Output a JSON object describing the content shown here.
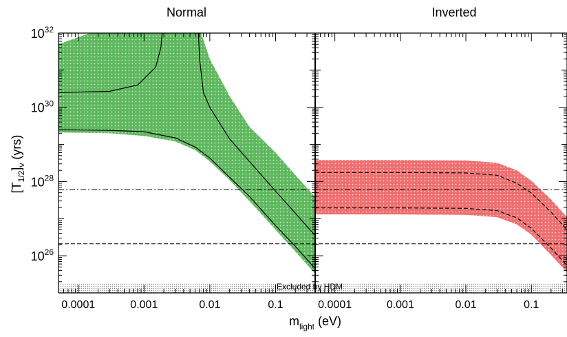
{
  "chart_data": {
    "type": "area",
    "title": "",
    "xlabel_main": "m",
    "xlabel_sub": "light",
    "xlabel_unit": " (eV)",
    "ylabel_main": "[T",
    "ylabel_sub": "1/2",
    "ylabel_mid": "]",
    "ylabel_sub2": "ν",
    "ylabel_unit": " (yrs)",
    "x_scale": "log",
    "y_scale": "log",
    "ylim": [
      1e+25,
      1e+32
    ],
    "y_ticks": [
      {
        "value": 1e+26,
        "base": "10",
        "exp": "26"
      },
      {
        "value": 1e+28,
        "base": "10",
        "exp": "28"
      },
      {
        "value": 1e+30,
        "base": "10",
        "exp": "30"
      },
      {
        "value": 1e+32,
        "base": "10",
        "exp": "32"
      }
    ],
    "x_ticks": [
      {
        "value": 0.0001,
        "label": "0.0001"
      },
      {
        "value": 0.001,
        "label": "0.001"
      },
      {
        "value": 0.01,
        "label": "0.01"
      },
      {
        "value": 0.1,
        "label": "0.1"
      }
    ],
    "horizontal_lines": [
      {
        "style": "dashdot",
        "value": 6e+27
      },
      {
        "style": "dashed",
        "value": 2.1e+26
      }
    ],
    "excluded_region": {
      "label": "Excluded by HDM",
      "y_max": 1.8e+25
    },
    "panels": [
      {
        "title": "Normal",
        "xlim": [
          5e-05,
          0.4
        ],
        "band_color": "#6cc06c",
        "band_lower": [
          [
            5e-05,
            2.1e+29
          ],
          [
            0.0003,
            2e+29
          ],
          [
            0.001,
            1.7e+29
          ],
          [
            0.003,
            1.2e+29
          ],
          [
            0.006,
            7e+28
          ],
          [
            0.01,
            3.5e+28
          ],
          [
            0.02,
            1.1e+28
          ],
          [
            0.04,
            3e+27
          ],
          [
            0.1,
            5e+26
          ],
          [
            0.2,
            1.3e+26
          ],
          [
            0.4,
            3.3e+25
          ]
        ],
        "band_upper": [
          [
            5e-05,
            5e+31
          ],
          [
            0.0002,
            1.2e+32
          ],
          [
            0.0005,
            3e+32
          ],
          [
            0.006,
            3e+32
          ],
          [
            0.01,
            2e+31
          ],
          [
            0.02,
            2e+30
          ],
          [
            0.04,
            3e+29
          ],
          [
            0.1,
            6e+28
          ],
          [
            0.2,
            1.5e+28
          ],
          [
            0.4,
            3.8e+27
          ]
        ],
        "lines": [
          {
            "style": "solid",
            "points": [
              [
                5e-05,
                2.5e+29
              ],
              [
                0.0003,
                2.4e+29
              ],
              [
                0.001,
                2.2e+29
              ],
              [
                0.003,
                1.5e+29
              ],
              [
                0.006,
                8.5e+28
              ],
              [
                0.01,
                4.3e+28
              ],
              [
                0.02,
                1.3e+28
              ],
              [
                0.04,
                4e+27
              ],
              [
                0.1,
                6.5e+26
              ],
              [
                0.2,
                1.8e+26
              ],
              [
                0.4,
                4.5e+25
              ]
            ]
          },
          {
            "style": "solid",
            "points": [
              [
                5e-05,
                2.5e+30
              ],
              [
                0.0003,
                2.7e+30
              ],
              [
                0.0008,
                4e+30
              ],
              [
                0.0015,
                1.2e+31
              ],
              [
                0.0018,
                4e+31
              ],
              [
                0.002,
                3e+32
              ]
            ]
          },
          {
            "style": "solid",
            "points": [
              [
                0.0065,
                3e+32
              ],
              [
                0.007,
                2e+31
              ],
              [
                0.008,
                2.5e+30
              ],
              [
                0.01,
                1e+30
              ],
              [
                0.02,
                1.4e+29
              ],
              [
                0.04,
                3.5e+28
              ],
              [
                0.1,
                5.5e+27
              ],
              [
                0.2,
                1.4e+27
              ],
              [
                0.4,
                3.5e+26
              ]
            ]
          }
        ]
      },
      {
        "title": "Inverted",
        "xlim": [
          5e-05,
          0.35
        ],
        "band_color": "#f07f7f",
        "band_lower": [
          [
            5e-05,
            1.3e+27
          ],
          [
            0.001,
            1.3e+27
          ],
          [
            0.01,
            1.27e+27
          ],
          [
            0.03,
            1.1e+27
          ],
          [
            0.06,
            7e+26
          ],
          [
            0.1,
            3.7e+26
          ],
          [
            0.2,
            1.05e+26
          ],
          [
            0.35,
            3.6e+25
          ]
        ],
        "band_upper": [
          [
            5e-05,
            3.8e+28
          ],
          [
            0.001,
            3.8e+28
          ],
          [
            0.01,
            3.7e+28
          ],
          [
            0.03,
            3.2e+28
          ],
          [
            0.06,
            2e+28
          ],
          [
            0.1,
            1.05e+28
          ],
          [
            0.2,
            3.3e+27
          ],
          [
            0.35,
            1.1e+27
          ]
        ],
        "lines": [
          {
            "style": "dashed",
            "points": [
              [
                5e-05,
                1.75e+28
              ],
              [
                0.001,
                1.75e+28
              ],
              [
                0.01,
                1.7e+28
              ],
              [
                0.03,
                1.48e+28
              ],
              [
                0.06,
                9e+27
              ],
              [
                0.1,
                4.9e+27
              ],
              [
                0.2,
                1.5e+27
              ],
              [
                0.35,
                5e+26
              ]
            ]
          },
          {
            "style": "dashed",
            "points": [
              [
                5e-05,
                1.95e+27
              ],
              [
                0.001,
                1.95e+27
              ],
              [
                0.01,
                1.9e+27
              ],
              [
                0.03,
                1.65e+27
              ],
              [
                0.06,
                1.05e+27
              ],
              [
                0.1,
                5.5e+26
              ],
              [
                0.2,
                1.6e+26
              ],
              [
                0.35,
                5.5e+25
              ]
            ]
          }
        ]
      }
    ]
  }
}
